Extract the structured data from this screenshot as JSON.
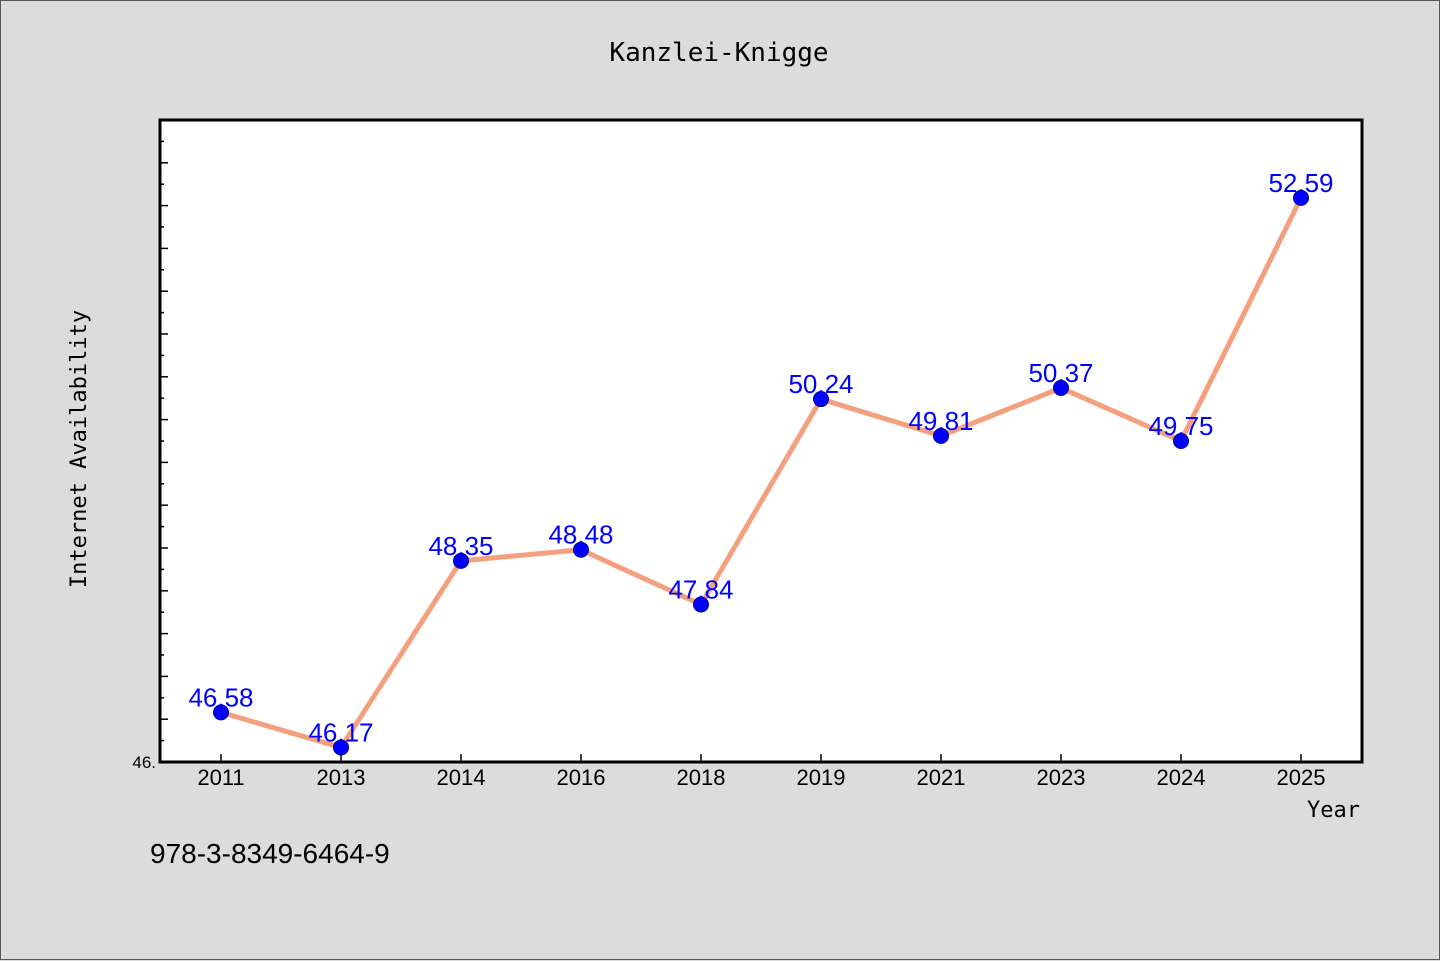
{
  "chart_data": {
    "type": "line",
    "title": "Kanzlei-Knigge",
    "xlabel": "Year",
    "ylabel": "Internet Availability",
    "categories": [
      "2011",
      "2013",
      "2014",
      "2016",
      "2018",
      "2019",
      "2021",
      "2023",
      "2024",
      "2025"
    ],
    "series": [
      {
        "values": [
          46.58,
          46.17,
          48.35,
          48.48,
          47.84,
          50.24,
          49.81,
          50.37,
          49.75,
          52.59
        ],
        "labels": [
          "46.58",
          "46.17",
          "48.35",
          "48.48",
          "47.84",
          "50.24",
          "49.81",
          "50.37",
          "49.75",
          "52.59"
        ]
      }
    ],
    "ylim": [
      46.0,
      53.5
    ],
    "ytick_label": "46.",
    "grid": false,
    "colors": {
      "line": "#f4a07e",
      "marker": "#0000ff",
      "data_label": "#0000ff",
      "background": "#dcdcdc",
      "plot_background": "#ffffff"
    }
  },
  "footer_text": "978-3-8349-6464-9"
}
